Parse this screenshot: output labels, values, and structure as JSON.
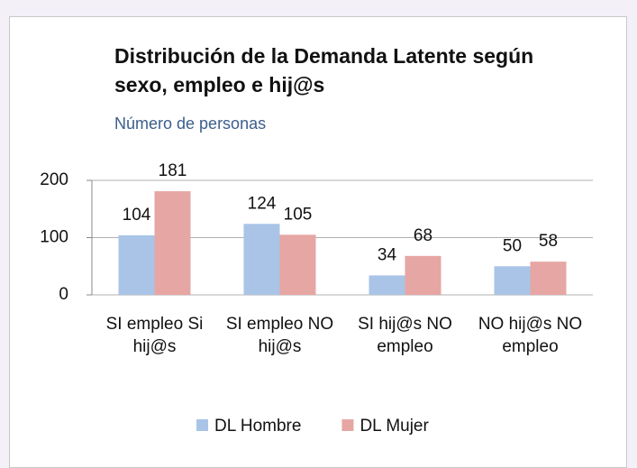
{
  "chart_data": {
    "type": "bar",
    "title": "Distribución de la Demanda Latente según sexo, empleo e hij@s",
    "subtitle": "Número de personas",
    "categories": [
      "SI empleo Si hij@s",
      "SI empleo NO hij@s",
      "SI hij@s NO empleo",
      "NO hij@s NO empleo"
    ],
    "series": [
      {
        "name": "DL Hombre",
        "color": "#a9c4e6",
        "values": [
          104,
          124,
          34,
          50
        ]
      },
      {
        "name": "DL Mujer",
        "color": "#e6a6a4",
        "values": [
          181,
          105,
          68,
          58
        ]
      }
    ],
    "ylim": [
      0,
      200
    ],
    "yticks": [
      0,
      100,
      200
    ],
    "grid": true,
    "legend": "bottom"
  }
}
